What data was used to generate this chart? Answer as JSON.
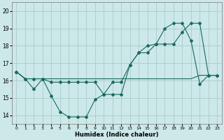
{
  "xlabel": "Humidex (Indice chaleur)",
  "bg_color": "#cce8e8",
  "grid_color": "#aacccc",
  "line_color": "#1a6a60",
  "xlim": [
    -0.5,
    23.5
  ],
  "ylim": [
    13.5,
    20.5
  ],
  "xticks": [
    0,
    1,
    2,
    3,
    4,
    5,
    6,
    7,
    8,
    9,
    10,
    11,
    12,
    13,
    14,
    15,
    16,
    17,
    18,
    19,
    20,
    21,
    22,
    23
  ],
  "yticks": [
    14,
    15,
    16,
    17,
    18,
    19,
    20
  ],
  "line1_x": [
    0,
    1,
    2,
    3,
    4,
    5,
    6,
    7,
    8,
    9,
    10,
    11,
    12,
    13,
    14,
    15,
    16,
    17,
    18,
    19,
    20,
    21,
    22,
    23
  ],
  "line1_y": [
    16.5,
    16.1,
    15.5,
    16.1,
    15.1,
    14.2,
    13.9,
    13.9,
    13.9,
    14.9,
    15.2,
    15.9,
    15.9,
    16.9,
    17.6,
    17.6,
    18.1,
    19.0,
    19.3,
    19.3,
    18.3,
    15.8,
    16.3,
    16.3
  ],
  "line2_x": [
    0,
    1,
    2,
    3,
    4,
    5,
    6,
    7,
    8,
    9,
    10,
    11,
    12,
    13,
    14,
    15,
    16,
    17,
    18,
    19,
    20,
    21,
    22,
    23
  ],
  "line2_y": [
    16.5,
    16.1,
    16.1,
    16.1,
    15.9,
    15.9,
    15.9,
    15.9,
    15.9,
    15.9,
    15.2,
    15.2,
    15.2,
    16.9,
    17.6,
    18.0,
    18.1,
    18.1,
    18.1,
    18.8,
    19.3,
    19.3,
    16.3,
    16.3
  ],
  "line3_x": [
    0,
    1,
    2,
    3,
    4,
    5,
    6,
    7,
    8,
    9,
    10,
    11,
    12,
    13,
    14,
    15,
    16,
    17,
    18,
    19,
    20,
    21,
    22,
    23
  ],
  "line3_y": [
    16.5,
    16.1,
    16.1,
    16.1,
    16.1,
    16.1,
    16.1,
    16.1,
    16.1,
    16.1,
    16.1,
    16.1,
    16.1,
    16.1,
    16.1,
    16.1,
    16.1,
    16.1,
    16.1,
    16.1,
    16.1,
    16.3,
    16.3,
    16.3
  ]
}
